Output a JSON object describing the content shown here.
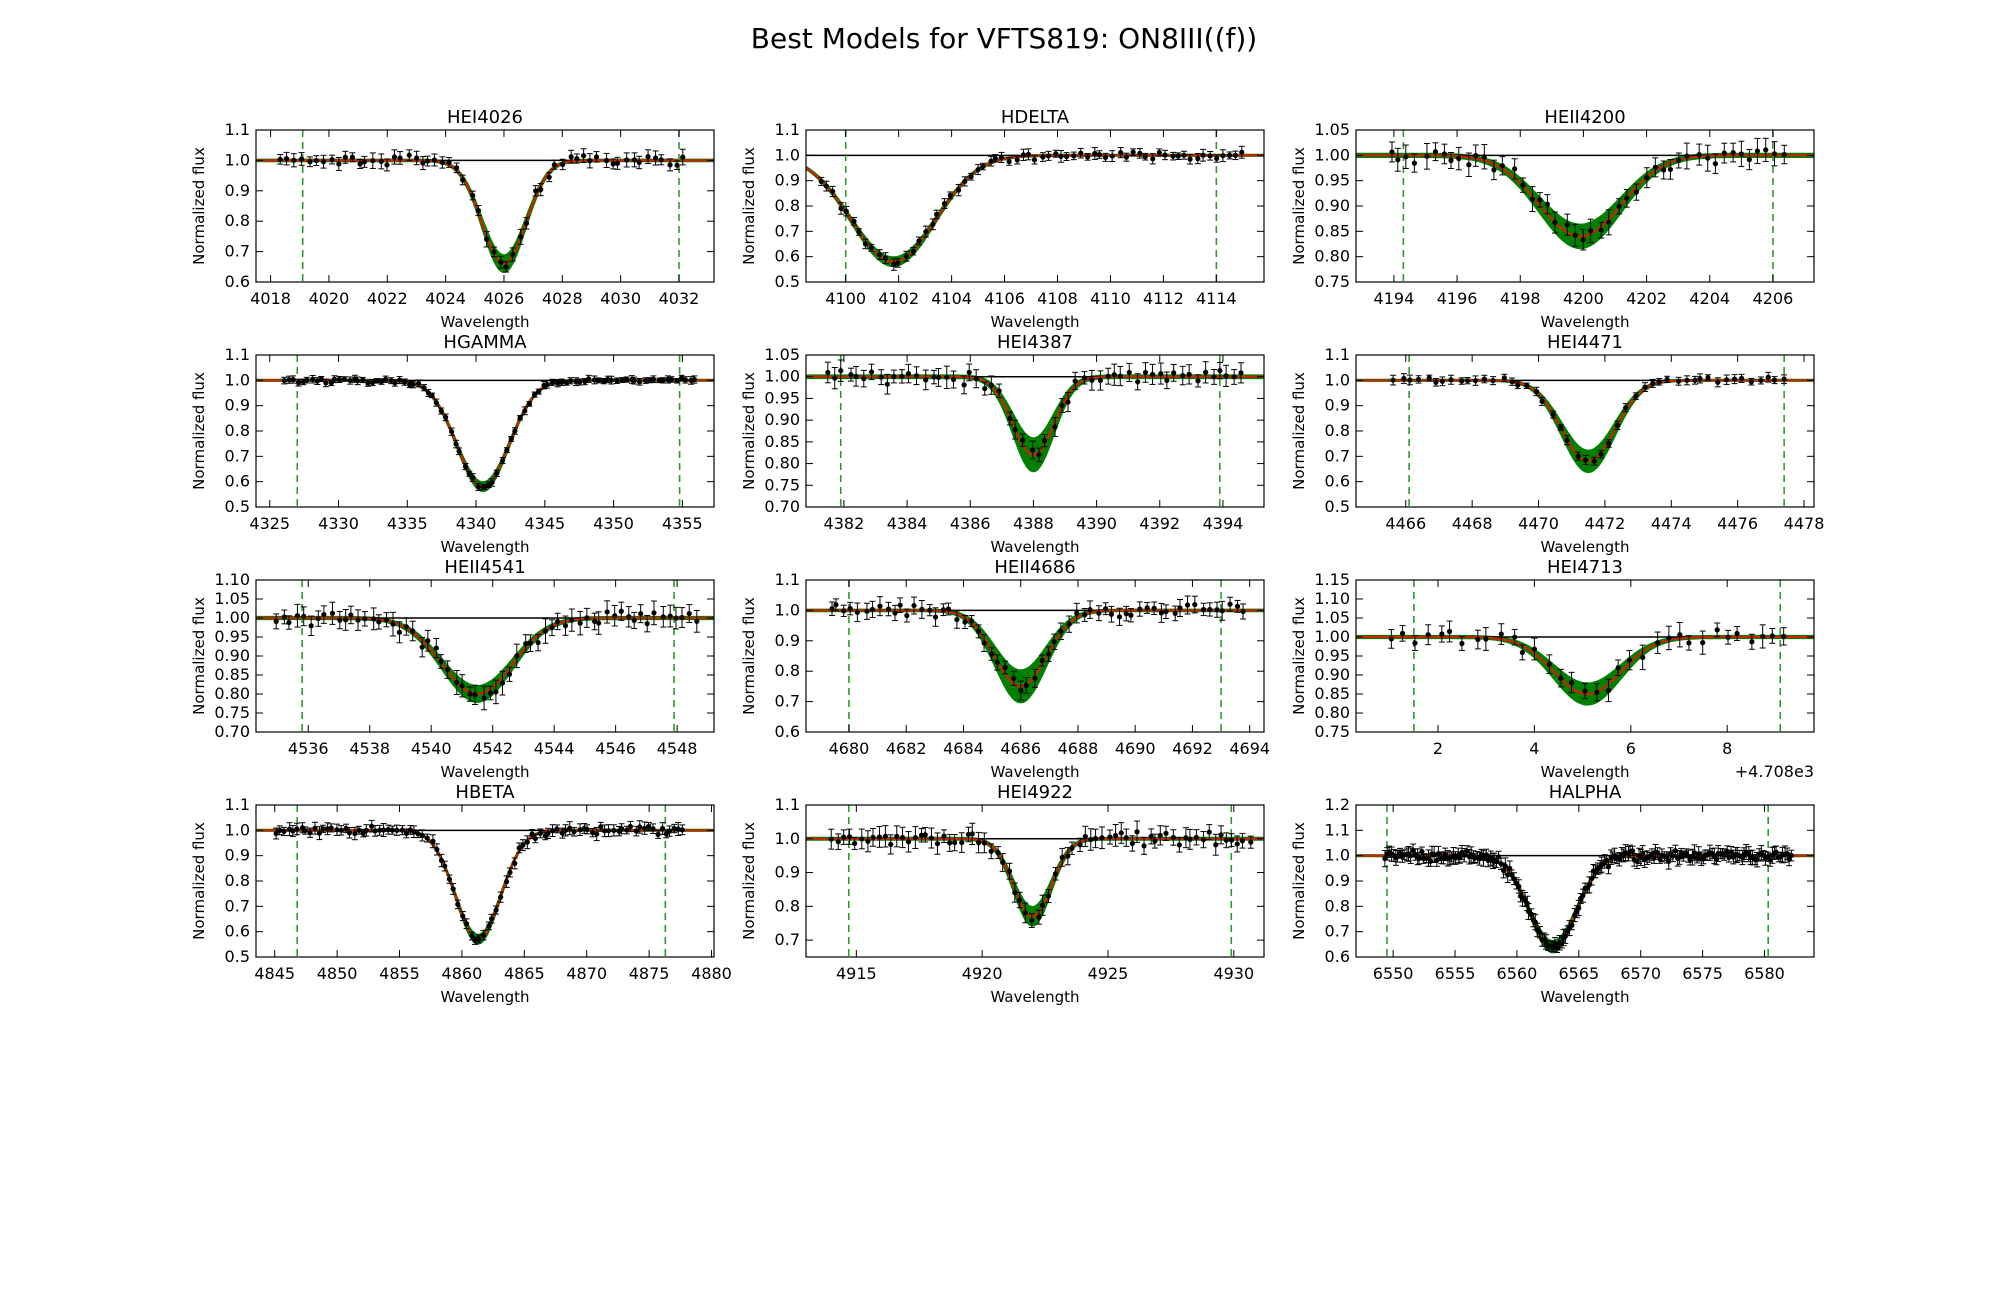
{
  "figure": {
    "title": "Best Models for VFTS819: ON8III((f))",
    "xlabel": "Wavelength",
    "ylabel": "Normalized flux",
    "colors": {
      "observed": "#000000",
      "model_band": "#008000",
      "best_model": "#cc2200",
      "continuum": "#000000",
      "fit_window": "#2e9a2e"
    }
  },
  "chart_data": [
    {
      "type": "line",
      "title": "HEI4026",
      "xlim": [
        4017.5,
        4033.2
      ],
      "ylim": [
        0.6,
        1.1
      ],
      "xticks": [
        4018,
        4020,
        4022,
        4024,
        4026,
        4028,
        4030,
        4032
      ],
      "yticks": [
        0.6,
        0.7,
        0.8,
        0.9,
        1.0,
        1.1
      ],
      "line_center": 4026.0,
      "line_width": 0.75,
      "model_min": 0.66,
      "band_halfwidth": 0.025,
      "fit_window": [
        4019.1,
        4032.0
      ],
      "obs_range": [
        4018.3,
        4032.3
      ],
      "n_points": 58,
      "noise": 0.02,
      "xtick_offset": ""
    },
    {
      "type": "line",
      "title": "HDELTA",
      "xlim": [
        4098.5,
        4115.8
      ],
      "ylim": [
        0.5,
        1.1
      ],
      "xticks": [
        4100,
        4102,
        4104,
        4106,
        4108,
        4110,
        4112,
        4114
      ],
      "yticks": [
        0.5,
        0.6,
        0.7,
        0.8,
        0.9,
        1.0,
        1.1
      ],
      "line_center": 4101.8,
      "line_width": 1.6,
      "model_min": 0.58,
      "band_halfwidth": 0.015,
      "fit_window": [
        4100.0,
        4114.0
      ],
      "obs_range": [
        4099.0,
        4115.2
      ],
      "n_points": 66,
      "noise": 0.018,
      "xtick_offset": ""
    },
    {
      "type": "line",
      "title": "HEII4200",
      "xlim": [
        4192.8,
        4207.3
      ],
      "ylim": [
        0.75,
        1.05
      ],
      "xticks": [
        4194,
        4196,
        4198,
        4200,
        4202,
        4204,
        4206
      ],
      "yticks": [
        0.75,
        0.8,
        0.85,
        0.9,
        0.95,
        1.0,
        1.05
      ],
      "line_center": 4199.9,
      "line_width": 1.3,
      "model_min": 0.84,
      "band_halfwidth": 0.02,
      "fit_window": [
        4194.3,
        4206.0
      ],
      "obs_range": [
        4193.8,
        4206.6
      ],
      "n_points": 46,
      "noise": 0.02,
      "xtick_offset": ""
    },
    {
      "type": "line",
      "title": "HGAMMA",
      "xlim": [
        4324.0,
        4357.3
      ],
      "ylim": [
        0.5,
        1.1
      ],
      "xticks": [
        4325,
        4330,
        4335,
        4340,
        4345,
        4350,
        4355
      ],
      "yticks": [
        0.5,
        0.6,
        0.7,
        0.8,
        0.9,
        1.0,
        1.1
      ],
      "line_center": 4340.5,
      "line_width": 1.9,
      "model_min": 0.58,
      "band_halfwidth": 0.015,
      "fit_window": [
        4327.0,
        4354.8
      ],
      "obs_range": [
        4326.0,
        4356.2
      ],
      "n_points": 90,
      "noise": 0.012,
      "xtick_offset": ""
    },
    {
      "type": "line",
      "title": "HEI4387",
      "xlim": [
        4380.8,
        4395.3
      ],
      "ylim": [
        0.7,
        1.05
      ],
      "xticks": [
        4382,
        4384,
        4386,
        4388,
        4390,
        4392,
        4394
      ],
      "yticks": [
        0.7,
        0.75,
        0.8,
        0.85,
        0.9,
        0.95,
        1.0,
        1.05
      ],
      "line_center": 4388.0,
      "line_width": 0.65,
      "model_min": 0.82,
      "band_halfwidth": 0.035,
      "fit_window": [
        4381.9,
        4393.9
      ],
      "obs_range": [
        4381.4,
        4394.8
      ],
      "n_points": 56,
      "noise": 0.02,
      "xtick_offset": ""
    },
    {
      "type": "line",
      "title": "HEI4471",
      "xlim": [
        4464.5,
        4478.3
      ],
      "ylim": [
        0.5,
        1.1
      ],
      "xticks": [
        4466,
        4468,
        4470,
        4472,
        4474,
        4476,
        4478
      ],
      "yticks": [
        0.5,
        0.6,
        0.7,
        0.8,
        0.9,
        1.0,
        1.1
      ],
      "line_center": 4471.5,
      "line_width": 0.8,
      "model_min": 0.68,
      "band_halfwidth": 0.04,
      "fit_window": [
        4466.1,
        4477.4
      ],
      "obs_range": [
        4465.6,
        4477.6
      ],
      "n_points": 48,
      "noise": 0.015,
      "xtick_offset": ""
    },
    {
      "type": "line",
      "title": "HEII4541",
      "xlim": [
        4534.3,
        4549.2
      ],
      "ylim": [
        0.7,
        1.1
      ],
      "xticks": [
        4536,
        4538,
        4540,
        4542,
        4544,
        4546,
        4548
      ],
      "yticks": [
        0.7,
        0.75,
        0.8,
        0.85,
        0.9,
        0.95,
        1.0,
        1.05,
        1.1
      ],
      "line_center": 4541.5,
      "line_width": 1.15,
      "model_min": 0.8,
      "band_halfwidth": 0.018,
      "fit_window": [
        4535.8,
        4547.9
      ],
      "obs_range": [
        4534.9,
        4548.8
      ],
      "n_points": 62,
      "noise": 0.025,
      "xtick_offset": ""
    },
    {
      "type": "line",
      "title": "HEII4686",
      "xlim": [
        4678.5,
        4694.5
      ],
      "ylim": [
        0.6,
        1.1
      ],
      "xticks": [
        4680,
        4682,
        4684,
        4686,
        4688,
        4690,
        4692,
        4694
      ],
      "yticks": [
        0.6,
        0.7,
        0.8,
        0.9,
        1.0,
        1.1
      ],
      "line_center": 4686.0,
      "line_width": 0.9,
      "model_min": 0.75,
      "band_halfwidth": 0.05,
      "fit_window": [
        4680.0,
        4693.0
      ],
      "obs_range": [
        4679.3,
        4694.0
      ],
      "n_points": 60,
      "noise": 0.025,
      "xtick_offset": ""
    },
    {
      "type": "line",
      "title": "HEI4713",
      "xlim": [
        0.3,
        9.8
      ],
      "ylim": [
        0.75,
        1.15
      ],
      "xticks": [
        2,
        4,
        6,
        8
      ],
      "yticks": [
        0.75,
        0.8,
        0.85,
        0.9,
        0.95,
        1.0,
        1.05,
        1.1,
        1.15
      ],
      "line_center": 5.1,
      "line_width": 0.7,
      "model_min": 0.85,
      "band_halfwidth": 0.025,
      "fit_window": [
        1.5,
        9.1
      ],
      "obs_range": [
        1.0,
        9.4
      ],
      "n_points": 34,
      "noise": 0.025,
      "xtick_offset": "+4.708e3"
    },
    {
      "type": "line",
      "title": "HBETA",
      "xlim": [
        4843.5,
        4880.2
      ],
      "ylim": [
        0.5,
        1.1
      ],
      "xticks": [
        4845,
        4850,
        4855,
        4860,
        4865,
        4870,
        4875,
        4880
      ],
      "yticks": [
        0.5,
        0.6,
        0.7,
        0.8,
        0.9,
        1.0,
        1.1
      ],
      "line_center": 4861.3,
      "line_width": 1.8,
      "model_min": 0.57,
      "band_halfwidth": 0.015,
      "fit_window": [
        4846.8,
        4876.3
      ],
      "obs_range": [
        4845.0,
        4878.0
      ],
      "n_points": 95,
      "noise": 0.02,
      "xtick_offset": ""
    },
    {
      "type": "line",
      "title": "HEI4922",
      "xlim": [
        4913.0,
        4931.2
      ],
      "ylim": [
        0.65,
        1.1
      ],
      "xticks": [
        4915,
        4920,
        4925,
        4930
      ],
      "yticks": [
        0.7,
        0.8,
        0.9,
        1.0,
        1.1
      ],
      "line_center": 4922.0,
      "line_width": 0.75,
      "model_min": 0.77,
      "band_halfwidth": 0.025,
      "fit_window": [
        4914.7,
        4929.9
      ],
      "obs_range": [
        4914.0,
        4930.8
      ],
      "n_points": 72,
      "noise": 0.025,
      "xtick_offset": ""
    },
    {
      "type": "line",
      "title": "HALPHA",
      "xlim": [
        6547.0,
        6584.0
      ],
      "ylim": [
        0.6,
        1.2
      ],
      "xticks": [
        6550,
        6555,
        6560,
        6565,
        6570,
        6575,
        6580
      ],
      "yticks": [
        0.6,
        0.7,
        0.8,
        0.9,
        1.0,
        1.1,
        1.2
      ],
      "line_center": 6562.9,
      "line_width": 1.9,
      "model_min": 0.64,
      "band_halfwidth": 0.02,
      "fit_window": [
        6549.5,
        6580.3
      ],
      "obs_range": [
        6549.3,
        6582.3
      ],
      "n_points": 190,
      "noise": 0.025,
      "xtick_offset": ""
    }
  ]
}
